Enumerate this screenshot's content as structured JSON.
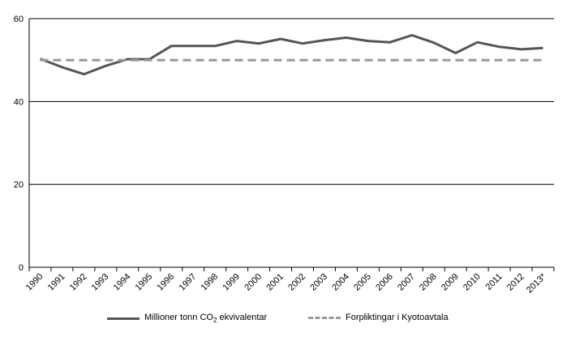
{
  "chart_data": {
    "type": "line",
    "categories": [
      "1990",
      "1991",
      "1992",
      "1993",
      "1994",
      "1995",
      "1996",
      "1997",
      "1998",
      "1999",
      "2000",
      "2001",
      "2002",
      "2003",
      "2004",
      "2005",
      "2006",
      "2007",
      "2008",
      "2009",
      "2010",
      "2011",
      "2012",
      "2013*"
    ],
    "series": [
      {
        "name": "Millioner tonn CO₂ ekvivalentar",
        "style": "solid",
        "color": "#555555",
        "values": [
          50.3,
          48.3,
          46.6,
          48.6,
          50.2,
          50.2,
          53.4,
          53.4,
          53.4,
          54.6,
          54.0,
          55.1,
          54.0,
          54.8,
          55.4,
          54.6,
          54.3,
          56.0,
          54.2,
          51.7,
          54.3,
          53.2,
          52.6,
          52.9
        ]
      },
      {
        "name": "Forpliktingar i Kyotoavtala",
        "style": "dashed",
        "color": "#999999",
        "values": [
          50,
          50,
          50,
          50,
          50,
          50,
          50,
          50,
          50,
          50,
          50,
          50,
          50,
          50,
          50,
          50,
          50,
          50,
          50,
          50,
          50,
          50,
          50,
          50
        ]
      }
    ],
    "yticks": [
      "0",
      "20",
      "40",
      "60"
    ],
    "ylim": [
      0,
      60
    ],
    "grid": true,
    "legend_position": "bottom",
    "title": "",
    "xlabel": "",
    "ylabel": ""
  },
  "legend": {
    "series1_prefix": "Millioner tonn CO",
    "series1_sub": "2",
    "series1_suffix": " ekvivalentar",
    "series2_label": "Forpliktingar i Kyotoavtala"
  }
}
